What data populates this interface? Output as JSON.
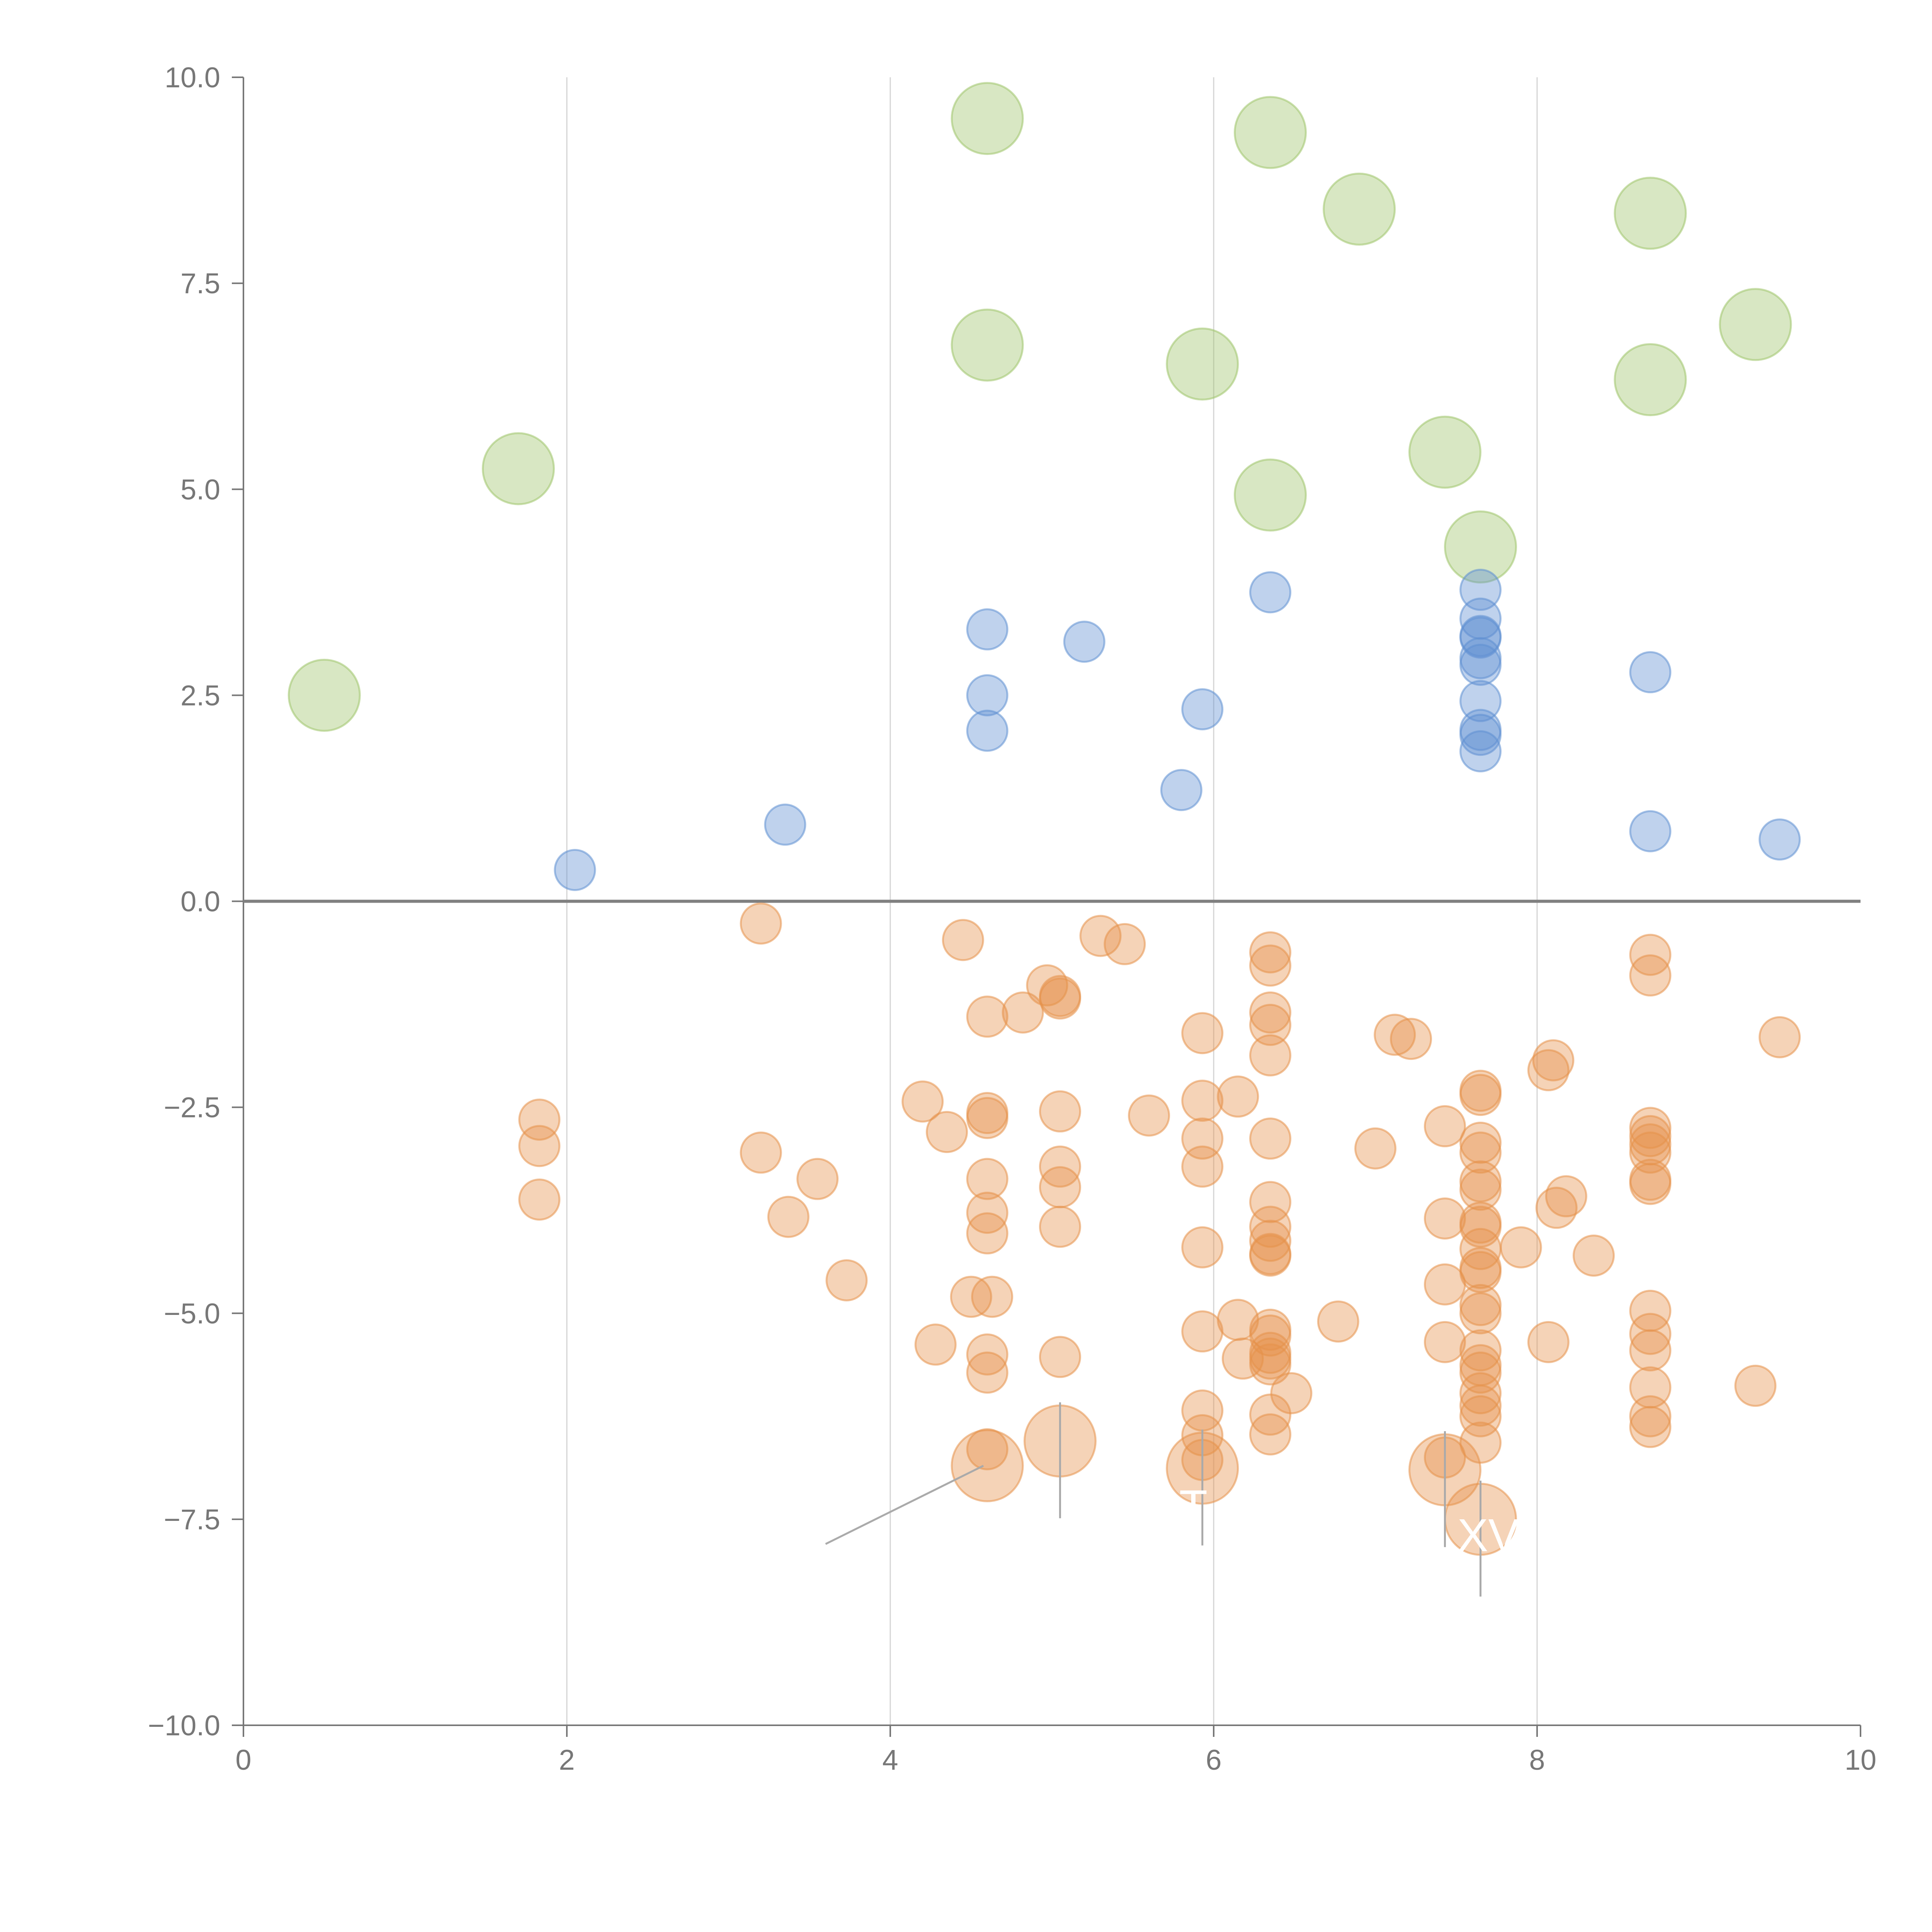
{
  "chart_data": {
    "type": "scatter",
    "title": "",
    "xlabel": "",
    "ylabel": "",
    "xlim": [
      0,
      10
    ],
    "ylim": [
      -10,
      10
    ],
    "grid": "vertical",
    "x_ticks": [
      0,
      2,
      4,
      6,
      8,
      10
    ],
    "y_ticks": [
      10,
      7.5,
      5,
      2.5,
      0,
      -2.5,
      -5,
      -7.5,
      -10
    ],
    "x_tick_labels": [
      "0",
      "2",
      "4",
      "6",
      "8",
      "10"
    ],
    "y_tick_labels": [
      "10.0",
      "7.5",
      "5.0",
      "2.5",
      "0.0",
      "−2.5",
      "−5.0",
      "−7.5",
      "−10.0"
    ],
    "reference_line_y": 0,
    "colors": {
      "green": "#9ec46a",
      "blue": "#5f8fd1",
      "orange": "#e6914b"
    },
    "series": [
      {
        "name": "green",
        "color": "#9ec46a",
        "size": "large",
        "points": [
          [
            0.5,
            2.5
          ],
          [
            1.7,
            5.25
          ],
          [
            4.6,
            9.5
          ],
          [
            6.35,
            9.33
          ],
          [
            6.9,
            8.4
          ],
          [
            8.7,
            8.35
          ],
          [
            4.6,
            6.75
          ],
          [
            5.93,
            6.52
          ],
          [
            9.35,
            7.0
          ],
          [
            8.7,
            6.33
          ],
          [
            7.43,
            5.45
          ],
          [
            6.35,
            4.93
          ],
          [
            7.65,
            4.3
          ]
        ]
      },
      {
        "name": "blue",
        "color": "#5f8fd1",
        "size": "small",
        "points": [
          [
            2.05,
            0.38
          ],
          [
            3.35,
            0.93
          ],
          [
            4.6,
            3.3
          ],
          [
            4.6,
            2.5
          ],
          [
            4.6,
            2.07
          ],
          [
            5.2,
            3.15
          ],
          [
            5.93,
            2.33
          ],
          [
            5.8,
            1.35
          ],
          [
            6.35,
            3.75
          ],
          [
            7.65,
            3.78
          ],
          [
            7.65,
            3.43
          ],
          [
            7.65,
            3.22
          ],
          [
            7.65,
            3.2
          ],
          [
            7.65,
            2.95
          ],
          [
            7.65,
            2.87
          ],
          [
            7.65,
            2.43
          ],
          [
            7.65,
            2.08
          ],
          [
            7.65,
            2.02
          ],
          [
            7.65,
            1.82
          ],
          [
            8.7,
            2.78
          ],
          [
            8.7,
            0.85
          ],
          [
            9.5,
            0.75
          ]
        ]
      },
      {
        "name": "orange",
        "color": "#e6914b",
        "size": "small",
        "points": [
          [
            1.83,
            -2.65
          ],
          [
            1.83,
            -2.97
          ],
          [
            1.83,
            -3.62
          ],
          [
            3.2,
            -0.27
          ],
          [
            3.2,
            -3.05
          ],
          [
            3.37,
            -3.83
          ],
          [
            3.55,
            -3.37
          ],
          [
            3.73,
            -4.6
          ],
          [
            4.2,
            -2.43
          ],
          [
            4.28,
            -5.38
          ],
          [
            4.35,
            -2.8
          ],
          [
            4.45,
            -0.47
          ],
          [
            4.5,
            -4.8
          ],
          [
            4.6,
            -1.4
          ],
          [
            4.6,
            -2.57
          ],
          [
            4.6,
            -2.63
          ],
          [
            4.6,
            -3.37
          ],
          [
            4.6,
            -3.78
          ],
          [
            4.6,
            -4.03
          ],
          [
            4.6,
            -5.5
          ],
          [
            4.6,
            -5.72
          ],
          [
            4.6,
            -6.65
          ],
          [
            4.63,
            -4.8
          ],
          [
            4.82,
            -1.35
          ],
          [
            4.97,
            -1.02
          ],
          [
            5.05,
            -1.15
          ],
          [
            5.05,
            -1.18
          ],
          [
            5.05,
            -2.55
          ],
          [
            5.05,
            -3.22
          ],
          [
            5.05,
            -3.47
          ],
          [
            5.05,
            -3.95
          ],
          [
            5.05,
            -5.53
          ],
          [
            5.3,
            -0.42
          ],
          [
            5.45,
            -0.52
          ],
          [
            5.6,
            -2.6
          ],
          [
            5.93,
            -1.6
          ],
          [
            5.93,
            -2.42
          ],
          [
            5.93,
            -2.88
          ],
          [
            5.93,
            -3.22
          ],
          [
            5.93,
            -4.2
          ],
          [
            5.93,
            -5.22
          ],
          [
            5.93,
            -6.18
          ],
          [
            5.93,
            -6.48
          ],
          [
            5.93,
            -6.78
          ],
          [
            6.15,
            -2.37
          ],
          [
            6.15,
            -5.08
          ],
          [
            6.18,
            -5.55
          ],
          [
            6.35,
            -0.62
          ],
          [
            6.35,
            -0.78
          ],
          [
            6.35,
            -1.35
          ],
          [
            6.35,
            -1.5
          ],
          [
            6.35,
            -1.87
          ],
          [
            6.35,
            -2.88
          ],
          [
            6.35,
            -3.65
          ],
          [
            6.35,
            -3.95
          ],
          [
            6.35,
            -4.12
          ],
          [
            6.35,
            -4.28
          ],
          [
            6.35,
            -4.3
          ],
          [
            6.35,
            -5.2
          ],
          [
            6.35,
            -5.27
          ],
          [
            6.35,
            -5.48
          ],
          [
            6.35,
            -5.55
          ],
          [
            6.35,
            -5.62
          ],
          [
            6.35,
            -6.23
          ],
          [
            6.35,
            -6.47
          ],
          [
            6.48,
            -5.97
          ],
          [
            6.77,
            -5.1
          ],
          [
            7.0,
            -3.0
          ],
          [
            7.12,
            -1.62
          ],
          [
            7.22,
            -1.67
          ],
          [
            7.43,
            -2.73
          ],
          [
            7.43,
            -3.85
          ],
          [
            7.43,
            -4.65
          ],
          [
            7.43,
            -5.35
          ],
          [
            7.43,
            -6.75
          ],
          [
            7.65,
            -2.3
          ],
          [
            7.65,
            -2.35
          ],
          [
            7.65,
            -2.93
          ],
          [
            7.65,
            -3.05
          ],
          [
            7.65,
            -3.4
          ],
          [
            7.65,
            -3.5
          ],
          [
            7.65,
            -3.9
          ],
          [
            7.65,
            -3.95
          ],
          [
            7.65,
            -4.22
          ],
          [
            7.65,
            -4.45
          ],
          [
            7.65,
            -4.5
          ],
          [
            7.65,
            -4.9
          ],
          [
            7.65,
            -5.0
          ],
          [
            7.65,
            -5.45
          ],
          [
            7.65,
            -5.63
          ],
          [
            7.65,
            -5.72
          ],
          [
            7.65,
            -5.97
          ],
          [
            7.65,
            -6.12
          ],
          [
            7.65,
            -6.25
          ],
          [
            7.65,
            -6.57
          ],
          [
            7.9,
            -4.2
          ],
          [
            8.07,
            -2.05
          ],
          [
            8.07,
            -5.35
          ],
          [
            8.1,
            -1.93
          ],
          [
            8.12,
            -3.72
          ],
          [
            8.18,
            -3.58
          ],
          [
            8.35,
            -4.3
          ],
          [
            8.7,
            -0.65
          ],
          [
            8.7,
            -0.9
          ],
          [
            8.7,
            -2.75
          ],
          [
            8.7,
            -2.85
          ],
          [
            8.7,
            -2.95
          ],
          [
            8.7,
            -3.05
          ],
          [
            8.7,
            -3.38
          ],
          [
            8.7,
            -3.43
          ],
          [
            8.7,
            -4.97
          ],
          [
            8.7,
            -5.25
          ],
          [
            8.7,
            -5.45
          ],
          [
            8.7,
            -5.9
          ],
          [
            8.7,
            -6.25
          ],
          [
            8.7,
            -6.38
          ],
          [
            9.35,
            -5.88
          ],
          [
            9.5,
            -1.65
          ]
        ]
      },
      {
        "name": "orange-large",
        "color": "#e6914b",
        "size": "xlarge",
        "points": [
          [
            4.6,
            -6.85
          ],
          [
            5.05,
            -6.55
          ],
          [
            5.93,
            -6.88
          ],
          [
            7.43,
            -6.9
          ],
          [
            7.65,
            -7.5
          ]
        ]
      }
    ],
    "annotations": [
      {
        "text": "T",
        "x": 5.93,
        "y": -7.35
      },
      {
        "text": "XV",
        "x": 7.65,
        "y": -7.7
      }
    ]
  }
}
